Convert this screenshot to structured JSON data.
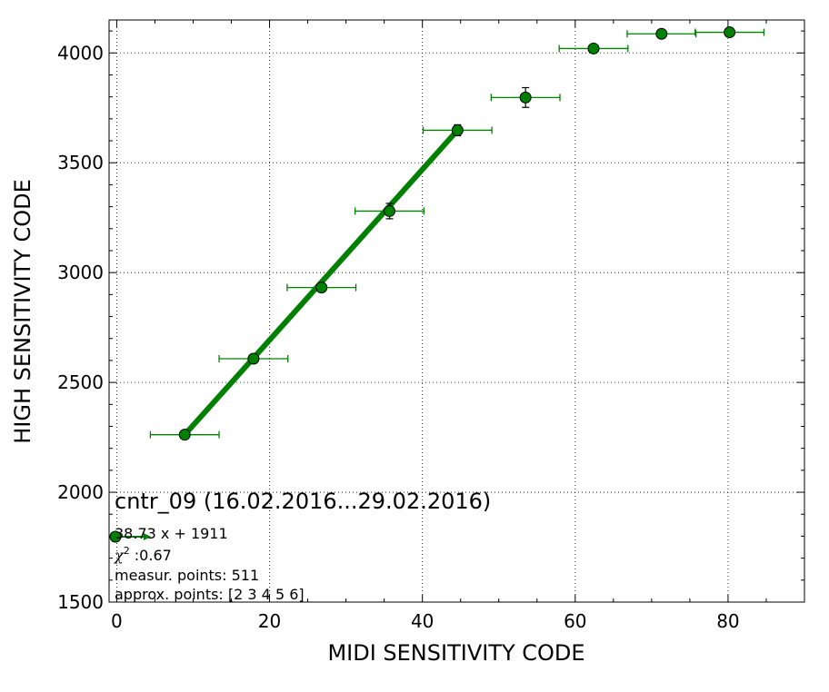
{
  "chart_data": {
    "type": "scatter",
    "title": "cntr_09 (16.02.2016...29.02.2016)",
    "xlabel": "MIDI SENSITIVITY CODE",
    "ylabel": "HIGH SENSITIVITY CODE",
    "xlim": [
      -1,
      90
    ],
    "ylim": [
      1500,
      4150
    ],
    "xticks": [
      0,
      20,
      40,
      60,
      80
    ],
    "yticks": [
      1500,
      2000,
      2500,
      3000,
      3500,
      4000
    ],
    "grid": true,
    "series": [
      {
        "kind": "points",
        "color": "#008000",
        "points": [
          {
            "x": 8.9,
            "y": 2262,
            "xerr": 4.5,
            "yerr": 15
          },
          {
            "x": 17.9,
            "y": 2608,
            "xerr": 4.5,
            "yerr": 20
          },
          {
            "x": 26.8,
            "y": 2932,
            "xerr": 4.5,
            "yerr": 15
          },
          {
            "x": 35.7,
            "y": 3280,
            "xerr": 4.5,
            "yerr": 35
          },
          {
            "x": 44.6,
            "y": 3648,
            "xerr": 4.5,
            "yerr": 25
          },
          {
            "x": 53.5,
            "y": 3797,
            "xerr": 4.5,
            "yerr": 45
          },
          {
            "x": 62.4,
            "y": 4020,
            "xerr": 4.5,
            "yerr": 10
          },
          {
            "x": 71.3,
            "y": 4087,
            "xerr": 4.5,
            "yerr": 10
          },
          {
            "x": 80.2,
            "y": 4094,
            "xerr": 4.5,
            "yerr": 10
          }
        ]
      },
      {
        "kind": "fit-line",
        "color": "#008000",
        "x": [
          8.9,
          44.6
        ],
        "y": [
          2262,
          3648
        ]
      }
    ],
    "annotations": {
      "fit_equation": "38.73 x + 1911",
      "chi2_symbol": "χ",
      "chi2_power": "2",
      "chi2_value": " :0.67",
      "measur_points": "measur. points: 511",
      "approx_points": "approx. points: [2 3 4 5 6]"
    },
    "colors": {
      "marker_fill": "#008000",
      "marker_edge": "#000000",
      "line": "#008000"
    }
  }
}
